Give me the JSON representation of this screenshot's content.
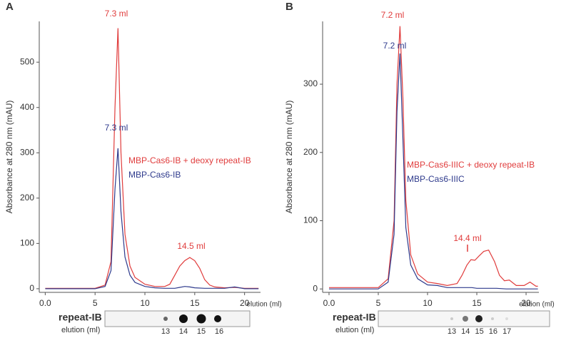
{
  "chart_data": [
    {
      "type": "line",
      "panel": "A",
      "ylabel": "Absorbance at 280 nm (mAU)",
      "xlabel": "elution (ml)",
      "xlim": [
        -0.6,
        21.6
      ],
      "ylim": [
        -8,
        590
      ],
      "xticks": [
        {
          "value": 0,
          "label": "0.0"
        },
        5,
        10,
        15,
        20
      ],
      "yticks": [
        0,
        100,
        200,
        300,
        400,
        500
      ],
      "series": [
        {
          "name": "MBP-Cas6-IB + deoxy repeat-IB",
          "color": "#e03c3c",
          "x": [
            0,
            5,
            6,
            6.6,
            7.0,
            7.3,
            7.6,
            8,
            8.5,
            9,
            10,
            11,
            12,
            12.5,
            13,
            13.5,
            14,
            14.5,
            15,
            15.5,
            16,
            16.5,
            17,
            18,
            19,
            20,
            21.4
          ],
          "values": [
            1,
            1,
            8,
            60,
            400,
            575,
            300,
            120,
            50,
            25,
            10,
            5,
            5,
            10,
            30,
            50,
            62,
            69,
            62,
            45,
            20,
            8,
            4,
            2,
            3,
            1,
            1
          ]
        },
        {
          "name": "MBP-Cas6-IB",
          "color": "#2e3a8c",
          "x": [
            0,
            5,
            6,
            6.6,
            7.0,
            7.3,
            7.6,
            8,
            8.5,
            9,
            10,
            11,
            12,
            13,
            13.5,
            14,
            14.5,
            15,
            16,
            18,
            19,
            20,
            21.4
          ],
          "values": [
            0,
            0,
            5,
            40,
            220,
            310,
            170,
            70,
            30,
            14,
            5,
            2,
            1,
            1,
            3,
            5,
            4,
            2,
            1,
            1,
            4,
            0,
            0
          ]
        }
      ],
      "annotations": [
        {
          "text": "7.3 ml",
          "color": "#e03c3c"
        },
        {
          "text": "7.3 ml",
          "color": "#2e3a8c"
        },
        {
          "text": "14.5 ml",
          "color": "#e03c3c"
        }
      ],
      "blot_label": "repeat-IB",
      "blot_sublabel": "elution (ml)",
      "blot_fractions": [
        13,
        14,
        15,
        16
      ]
    },
    {
      "type": "line",
      "panel": "B",
      "ylabel": "Absorbance at 280 nm (mAU)",
      "xlabel": "elution (ml)",
      "xlim": [
        -0.65,
        21.3
      ],
      "ylim": [
        -5,
        392
      ],
      "xticks": [
        {
          "value": 0,
          "label": "0.0"
        },
        5,
        10,
        15,
        20
      ],
      "yticks": [
        0,
        100,
        200,
        300
      ],
      "series": [
        {
          "name": "MBP-Cas6-IIIC + deoxy repeat-IB",
          "color": "#e03c3c",
          "x": [
            0,
            5,
            6,
            6.6,
            6.9,
            7.2,
            7.5,
            7.8,
            8.3,
            9,
            10,
            11,
            12,
            13,
            13.5,
            14,
            14.4,
            14.8,
            15.2,
            15.7,
            16.2,
            16.8,
            17.3,
            17.8,
            18.3,
            19,
            19.8,
            20.4,
            21,
            21.2
          ],
          "values": [
            2,
            2,
            15,
            100,
            300,
            385,
            280,
            130,
            50,
            22,
            10,
            8,
            5,
            8,
            20,
            35,
            43,
            42,
            48,
            55,
            57,
            40,
            20,
            12,
            13,
            5,
            5,
            10,
            4,
            4
          ]
        },
        {
          "name": "MBP-Cas6-IIIC",
          "color": "#2e3a8c",
          "x": [
            0,
            5,
            6,
            6.6,
            6.9,
            7.2,
            7.5,
            7.8,
            8.3,
            9,
            10,
            11,
            12,
            13,
            14,
            14.5,
            15,
            17,
            18,
            21.2
          ],
          "values": [
            0,
            0,
            10,
            80,
            260,
            345,
            220,
            90,
            35,
            15,
            6,
            5,
            2,
            2,
            2,
            2,
            1,
            1,
            0,
            0
          ]
        }
      ],
      "annotations": [
        {
          "text": "7.2 ml",
          "color": "#e03c3c"
        },
        {
          "text": "7.2 ml",
          "color": "#2e3a8c"
        },
        {
          "text": "14.4 ml",
          "color": "#e03c3c"
        }
      ],
      "blot_label": "repeat-IB",
      "blot_sublabel": "elution (ml)",
      "blot_fractions": [
        13,
        14,
        15,
        16,
        17
      ]
    }
  ]
}
